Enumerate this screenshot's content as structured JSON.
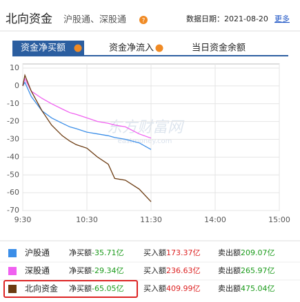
{
  "header": {
    "title": "北向资金",
    "subtitle": "沪股通、深股通",
    "date_label": "数据日期：",
    "date": "2021-08-20",
    "more": "更多"
  },
  "tabs": [
    "资金净买额",
    "资金净流入",
    "当日资金余额"
  ],
  "watermark": "东方财富网",
  "watermark_sub": "eastmoney.com",
  "chart_data": {
    "type": "line",
    "x": [
      0,
      2,
      8,
      18,
      27,
      37,
      44,
      50,
      60,
      70,
      80,
      86,
      96,
      109,
      120
    ],
    "xlim": [
      0,
      240
    ],
    "xticks": [
      {
        "value": 0,
        "label": "9:30"
      },
      {
        "value": 60,
        "label": "10:30"
      },
      {
        "value": 120,
        "label": "11:30"
      },
      {
        "value": 180,
        "label": "14:00"
      },
      {
        "value": 240,
        "label": "15:00"
      }
    ],
    "ylim": [
      -70,
      10
    ],
    "yticks": [
      10,
      0,
      -10,
      -20,
      -30,
      -40,
      -50,
      -60,
      -70
    ],
    "grid": true,
    "series": [
      {
        "name": "沪股通",
        "color": "#3b8ee8",
        "values": [
          0,
          2,
          -6,
          -14,
          -18,
          -21,
          -23,
          -24,
          -26,
          -27,
          -28,
          -29,
          -30,
          -32,
          -35.71
        ]
      },
      {
        "name": "深股通",
        "color": "#f060f0",
        "values": [
          0,
          4,
          -3,
          -7,
          -10,
          -13,
          -15,
          -16,
          -18,
          -20,
          -21,
          -22,
          -23,
          -27,
          -29.34
        ]
      },
      {
        "name": "北向资金",
        "color": "#6b3a10",
        "values": [
          0,
          6,
          -3,
          -14,
          -22,
          -28,
          -31,
          -33,
          -35,
          -40,
          -44,
          -52,
          -53,
          -58,
          -65.05
        ]
      }
    ]
  },
  "table": {
    "rows": [
      {
        "net_label": "净买额",
        "net": "-35.71亿",
        "buy_label": "买入额",
        "buy": "173.37亿",
        "sell_label": "卖出额",
        "sell": "209.07亿"
      },
      {
        "net_label": "净买额",
        "net": "-29.34亿",
        "buy_label": "买入额",
        "buy": "236.63亿",
        "sell_label": "卖出额",
        "sell": "265.97亿"
      },
      {
        "net_label": "净买额",
        "net": "-65.05亿",
        "buy_label": "买入额",
        "buy": "409.99亿",
        "sell_label": "卖出额",
        "sell": "475.04亿"
      }
    ]
  }
}
